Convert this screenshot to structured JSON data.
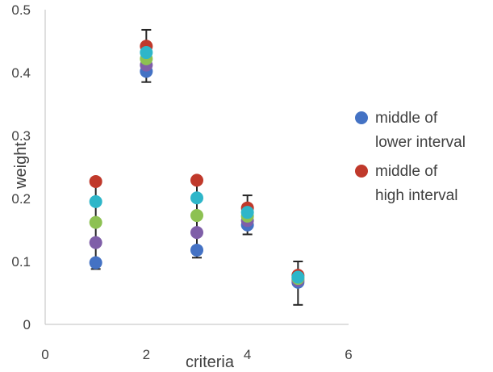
{
  "chart_data": {
    "type": "scatter",
    "xlabel": "criteria",
    "ylabel": "weight",
    "xlim": [
      0,
      6
    ],
    "ylim": [
      0,
      0.5
    ],
    "x_ticks": [
      "0",
      "2",
      "4",
      "6"
    ],
    "y_ticks": [
      "0",
      "0.1",
      "0.2",
      "0.3",
      "0.4",
      "0.5"
    ],
    "grid": false,
    "legend_position": "right",
    "error_bars": [
      {
        "x": 1,
        "low": 0.088,
        "high": 0.228
      },
      {
        "x": 2,
        "low": 0.385,
        "high": 0.468
      },
      {
        "x": 3,
        "low": 0.106,
        "high": 0.232
      },
      {
        "x": 4,
        "low": 0.143,
        "high": 0.205
      },
      {
        "x": 5,
        "low": 0.031,
        "high": 0.1
      }
    ],
    "series": [
      {
        "name": "middle of lower interval",
        "color": "#4472C4",
        "in_legend": true,
        "points": [
          {
            "x": 1,
            "y": 0.098
          },
          {
            "x": 2,
            "y": 0.402
          },
          {
            "x": 3,
            "y": 0.118
          },
          {
            "x": 4,
            "y": 0.158
          },
          {
            "x": 5,
            "y": 0.067
          }
        ]
      },
      {
        "name": "middle of high interval",
        "color": "#C0392B",
        "in_legend": true,
        "points": [
          {
            "x": 1,
            "y": 0.227
          },
          {
            "x": 2,
            "y": 0.442
          },
          {
            "x": 3,
            "y": 0.229
          },
          {
            "x": 4,
            "y": 0.185
          },
          {
            "x": 5,
            "y": 0.078
          }
        ]
      },
      {
        "name": "",
        "color": "#7F5FA8",
        "in_legend": false,
        "points": [
          {
            "x": 1,
            "y": 0.13
          },
          {
            "x": 2,
            "y": 0.412
          },
          {
            "x": 3,
            "y": 0.146
          },
          {
            "x": 4,
            "y": 0.165
          },
          {
            "x": 5,
            "y": 0.07
          }
        ]
      },
      {
        "name": "",
        "color": "#8DC152",
        "in_legend": false,
        "points": [
          {
            "x": 1,
            "y": 0.162
          },
          {
            "x": 2,
            "y": 0.422
          },
          {
            "x": 3,
            "y": 0.173
          },
          {
            "x": 4,
            "y": 0.172
          },
          {
            "x": 5,
            "y": 0.073
          }
        ]
      },
      {
        "name": "",
        "color": "#2EB6C9",
        "in_legend": false,
        "points": [
          {
            "x": 1,
            "y": 0.195
          },
          {
            "x": 2,
            "y": 0.432
          },
          {
            "x": 3,
            "y": 0.201
          },
          {
            "x": 4,
            "y": 0.178
          },
          {
            "x": 5,
            "y": 0.075
          }
        ]
      }
    ]
  }
}
